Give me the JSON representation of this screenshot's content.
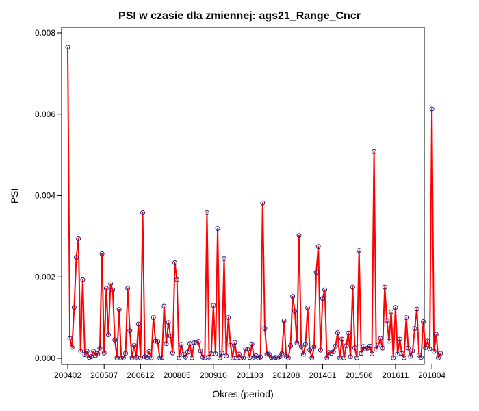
{
  "chart_data": {
    "type": "line",
    "title": "PSI w czasie dla zmiennej: ags21_Range_Cncr",
    "xlabel": "Okres (period)",
    "ylabel": "PSI",
    "ylim": [
      0,
      0.008
    ],
    "yticks": [
      0,
      0.002,
      0.004,
      0.006,
      0.008
    ],
    "ytick_labels": [
      "0.000",
      "0.002",
      "0.004",
      "0.006",
      "0.008"
    ],
    "xticks": [
      "200402",
      "200507",
      "200612",
      "200805",
      "200910",
      "201103",
      "201208",
      "201401",
      "201506",
      "201611",
      "201804"
    ],
    "grid": false,
    "colors": {
      "line": "#ff0000",
      "marker_edge": "#1a1a8c"
    },
    "series": [
      {
        "values": [
          0.00765,
          0.00049,
          0.00027,
          0.00125,
          0.00248,
          0.00294,
          0.00017,
          0.00193,
          9e-05,
          0.00017,
          2e-05,
          4e-05,
          0.00017,
          7e-05,
          0.00011,
          0.00025,
          0.00257,
          0.00013,
          0.00172,
          0.00058,
          0.00183,
          0.00168,
          0.00045,
          1e-05,
          0.0012,
          1e-05,
          1e-05,
          0.00012,
          0.00172,
          0.00068,
          1e-05,
          0.00032,
          3e-05,
          0.00084,
          1e-05,
          0.00358,
          4e-05,
          2e-05,
          0.00016,
          1e-05,
          0.001,
          0.00042,
          0.00041,
          1e-05,
          2e-05,
          0.00128,
          0.00036,
          0.00088,
          0.00055,
          0.00013,
          0.00235,
          0.00193,
          1e-05,
          0.00034,
          9e-05,
          3e-05,
          0.00015,
          0.00036,
          1e-05,
          0.00038,
          0.00038,
          0.00041,
          0.00018,
          3e-05,
          1e-05,
          0.00358,
          3e-05,
          0.00011,
          0.0013,
          0.00011,
          0.00319,
          1e-05,
          0.00013,
          0.00245,
          6e-05,
          0.001,
          0.00032,
          1e-05,
          0.00039,
          1e-05,
          0.0001,
          1e-05,
          1e-05,
          0.00023,
          0.00022,
          2e-05,
          0.00035,
          3e-05,
          6e-05,
          1e-05,
          3e-05,
          0.00382,
          0.00073,
          0.0001,
          0.0001,
          2e-05,
          1e-05,
          2e-05,
          1e-05,
          4e-05,
          0.00012,
          0.00092,
          5e-05,
          1e-05,
          0.00031,
          0.00152,
          0.00116,
          0.00038,
          0.00302,
          0.00029,
          0.0001,
          0.00035,
          0.00124,
          0.0002,
          1e-05,
          0.00028,
          0.00211,
          0.00275,
          0.0002,
          0.00147,
          0.00168,
          1e-05,
          0.00014,
          0.00012,
          0.00016,
          0.0003,
          0.00063,
          1e-05,
          0.00047,
          1e-05,
          0.00031,
          0.00062,
          4e-05,
          0.00175,
          0.00026,
          1e-05,
          0.00265,
          0.00012,
          0.00029,
          0.00023,
          0.00025,
          0.0003,
          0.00011,
          0.00508,
          0.00022,
          0.00033,
          0.00049,
          0.00025,
          0.00175,
          0.00093,
          0.00042,
          0.00114,
          1e-05,
          0.00125,
          0.0001,
          0.00047,
          0.00012,
          1e-05,
          0.001,
          0.00025,
          5e-05,
          0.00018,
          0.00073,
          0.00121,
          8e-05,
          2e-05,
          0.0009,
          0.00026,
          0.00042,
          0.00023,
          0.00613,
          0.00017,
          0.00059,
          1e-05,
          0.00012
        ]
      }
    ]
  }
}
